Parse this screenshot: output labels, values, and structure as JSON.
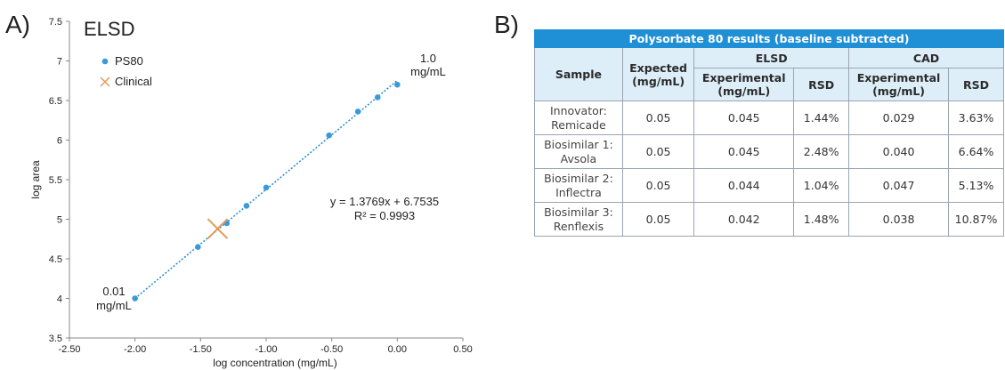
{
  "panel_labels": {
    "a": "A)",
    "b": "B)"
  },
  "chart_data": {
    "type": "scatter",
    "title": "ELSD",
    "xlabel": "log concentration (mg/mL)",
    "ylabel": "log area",
    "xlim": [
      -2.5,
      0.5
    ],
    "ylim": [
      3.5,
      7.5
    ],
    "xticks": [
      -2.5,
      -2.0,
      -1.5,
      -1.0,
      -0.5,
      0.0,
      0.5
    ],
    "xtick_labels": [
      "-2.50",
      "-2.00",
      "-1.50",
      "-1.00",
      "-0.50",
      "0.00",
      "0.50"
    ],
    "yticks": [
      3.5,
      4,
      4.5,
      5,
      5.5,
      6,
      6.5,
      7,
      7.5
    ],
    "ytick_labels": [
      "3.5",
      "4",
      "4.5",
      "5",
      "5.5",
      "6",
      "6.5",
      "7",
      "7.5"
    ],
    "grid": false,
    "legend_position": "top-left",
    "series": [
      {
        "name": "PS80",
        "marker": "circle",
        "color": "#3a9ad9",
        "x": [
          -2.0,
          -1.52,
          -1.3,
          -1.15,
          -1.0,
          -0.52,
          -0.3,
          -0.15,
          0.0
        ],
        "y": [
          4.0,
          4.65,
          4.95,
          5.17,
          5.4,
          6.06,
          6.36,
          6.54,
          6.7
        ]
      },
      {
        "name": "Clinical",
        "marker": "x",
        "color": "#e39a5b",
        "x": [
          -1.37
        ],
        "y": [
          4.88
        ]
      }
    ],
    "trendline": {
      "color": "#2b8fd0",
      "slope": 1.3769,
      "intercept": 6.7535,
      "x_range": [
        -2.0,
        0.0
      ],
      "equation": "y = 1.3769x + 6.7535",
      "r_squared": "R² = 0.9993"
    },
    "annotations": [
      {
        "lines": [
          "0.01",
          "mg/mL"
        ]
      },
      {
        "lines": [
          "1.0",
          "mg/mL"
        ]
      }
    ]
  },
  "table": {
    "title": "Polysorbate 80 results (baseline subtracted)",
    "col_sample": "Sample",
    "col_expected": [
      "Expected",
      "(mg/mL)"
    ],
    "group_elsd": "ELSD",
    "group_cad": "CAD",
    "col_experimental": [
      "Experimental",
      "(mg/mL)"
    ],
    "col_rsd": "RSD",
    "rows": [
      {
        "sample": [
          "Innovator:",
          "Remicade"
        ],
        "expected": "0.05",
        "elsd_exp": "0.045",
        "elsd_rsd": "1.44%",
        "cad_exp": "0.029",
        "cad_rsd": "3.63%"
      },
      {
        "sample": [
          "Biosimilar 1:",
          "Avsola"
        ],
        "expected": "0.05",
        "elsd_exp": "0.045",
        "elsd_rsd": "2.48%",
        "cad_exp": "0.040",
        "cad_rsd": "6.64%"
      },
      {
        "sample": [
          "Biosimilar 2:",
          "Inflectra"
        ],
        "expected": "0.05",
        "elsd_exp": "0.044",
        "elsd_rsd": "1.04%",
        "cad_exp": "0.047",
        "cad_rsd": "5.13%"
      },
      {
        "sample": [
          "Biosimilar 3:",
          "Renflexis"
        ],
        "expected": "0.05",
        "elsd_exp": "0.042",
        "elsd_rsd": "1.48%",
        "cad_exp": "0.038",
        "cad_rsd": "10.87%"
      }
    ]
  }
}
